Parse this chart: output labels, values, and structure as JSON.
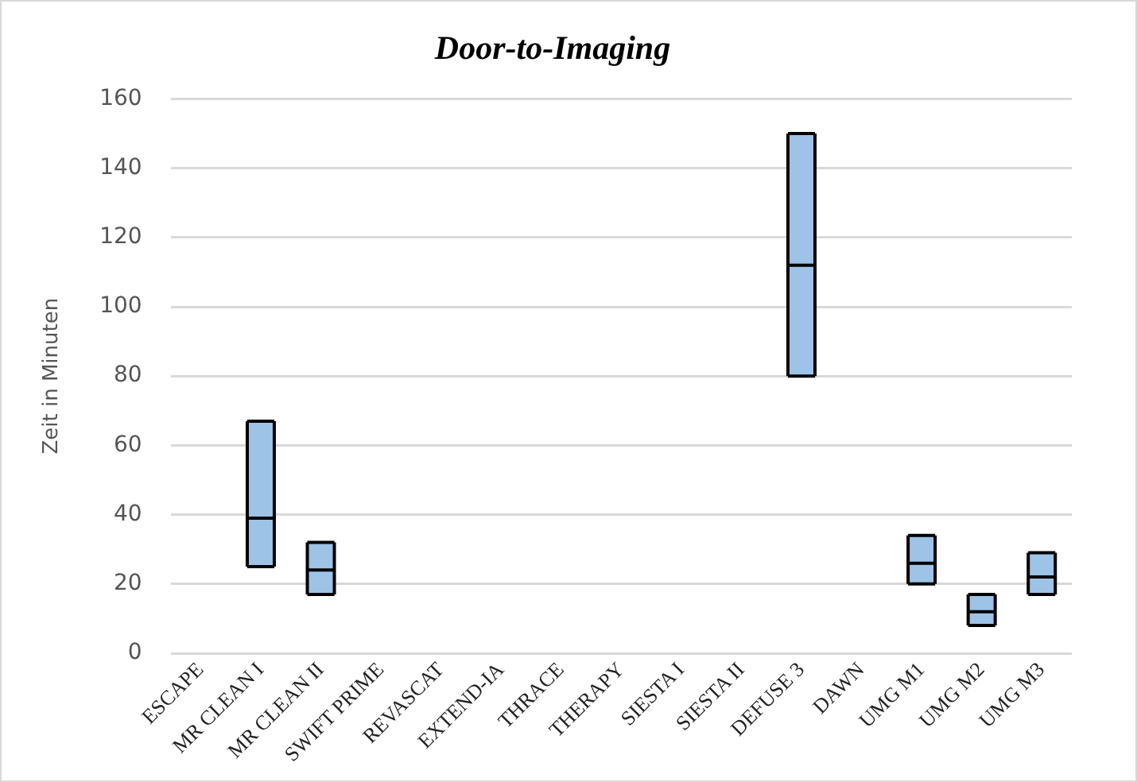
{
  "chart_data": {
    "type": "box",
    "title": "Door-to-Imaging",
    "ylabel": "Zeit in Minuten",
    "categories": [
      "ESCAPE",
      "MR CLEAN I",
      "MR CLEAN II",
      "SWIFT PRIME",
      "REVASCAT",
      "EXTEND-IA",
      "THRACE",
      "THERAPY",
      "SIESTA I",
      "SIESTA II",
      "DEFUSE 3",
      "DAWN",
      "UMG M1",
      "UMG M2",
      "UMG M3"
    ],
    "color": "#9dc3e6",
    "boxes": [
      null,
      {
        "low": 25,
        "q1": 25,
        "median": 39,
        "q3": 67,
        "high": 67
      },
      {
        "low": 17,
        "q1": 17,
        "median": 24,
        "q3": 32,
        "high": 32
      },
      null,
      null,
      null,
      null,
      null,
      null,
      null,
      {
        "low": 80,
        "q1": 80,
        "median": 112,
        "q3": 150,
        "high": 150
      },
      null,
      {
        "low": 20,
        "q1": 20,
        "median": 26,
        "q3": 34,
        "high": 34
      },
      {
        "low": 8,
        "q1": 8,
        "median": 12,
        "q3": 17,
        "high": 17
      },
      {
        "low": 17,
        "q1": 17,
        "median": 22,
        "q3": 29,
        "high": 29
      }
    ],
    "ylim": [
      0,
      160
    ],
    "yticks": [
      0,
      20,
      40,
      60,
      80,
      100,
      120,
      140,
      160
    ],
    "grid": "y",
    "legend": false
  }
}
